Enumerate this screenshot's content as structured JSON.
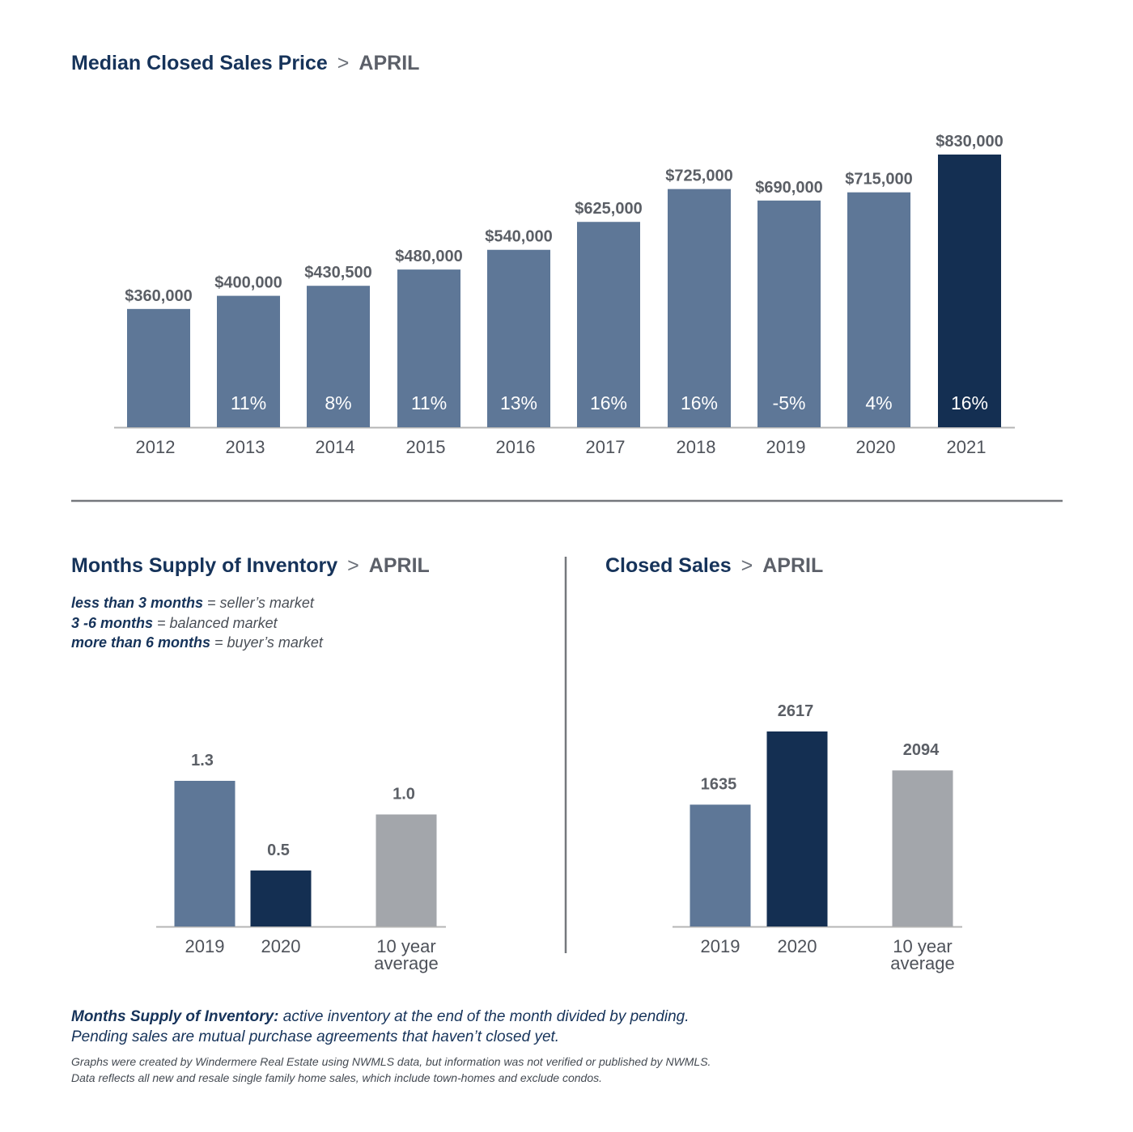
{
  "colors": {
    "bar": "#5e7797",
    "highlight": "#142f52",
    "average": "#a3a6ab",
    "axis": "#b5b5b5",
    "title": "#16335a",
    "divider": "#75787d"
  },
  "sections": {
    "price": {
      "title": "Median Closed Sales Price",
      "sep": ">",
      "month": "APRIL"
    },
    "inventory": {
      "title": "Months Supply of Inventory",
      "sep": ">",
      "month": "APRIL"
    },
    "sales": {
      "title": "Closed Sales",
      "sep": ">",
      "month": "APRIL"
    }
  },
  "legend": {
    "line1_key": "less than 3 months",
    "line1_val": " = seller’s market",
    "line2_key": "3 -6 months",
    "line2_val": " = balanced market",
    "line3_key": "more than 6 months",
    "line3_val": " = buyer’s market"
  },
  "footnote": {
    "key": "Months Supply of Inventory:",
    "line1": " active inventory at the end of the month divided by pending.",
    "line2": "Pending sales are mutual purchase agreements that haven’t closed yet."
  },
  "fine_print": {
    "line1": "Graphs were created by Windermere Real Estate using NWMLS data, but information was not verified or published by NWMLS.",
    "line2": "Data reflects all new and resale single family home sales, which include town-homes and exclude condos."
  },
  "chart_data": [
    {
      "type": "bar",
      "title": "Median Closed Sales Price > APRIL",
      "categories": [
        "2012",
        "2013",
        "2014",
        "2015",
        "2016",
        "2017",
        "2018",
        "2019",
        "2020",
        "2021"
      ],
      "values": [
        360000,
        400000,
        430500,
        480000,
        540000,
        625000,
        725000,
        690000,
        715000,
        830000
      ],
      "value_labels": [
        "$360,000",
        "$400,000",
        "$430,500",
        "$480,000",
        "$540,000",
        "$625,000",
        "$725,000",
        "$690,000",
        "$715,000",
        "$830,000"
      ],
      "pct_change_labels": [
        "",
        "11%",
        "8%",
        "11%",
        "13%",
        "16%",
        "16%",
        "-5%",
        "4%",
        "16%"
      ],
      "highlight_index": 9,
      "ylim": [
        0,
        830000
      ],
      "grid": false
    },
    {
      "type": "bar",
      "title": "Months Supply of Inventory > APRIL",
      "categories": [
        "2019",
        "2020",
        "10 year average"
      ],
      "values": [
        1.3,
        0.5,
        1.0
      ],
      "value_labels": [
        "1.3",
        "0.5",
        "1.0"
      ],
      "ylim": [
        0,
        1.3
      ],
      "grid": false
    },
    {
      "type": "bar",
      "title": "Closed Sales > APRIL",
      "categories": [
        "2019",
        "2020",
        "10 year average"
      ],
      "values": [
        1635,
        2617,
        2094
      ],
      "value_labels": [
        "1635",
        "2617",
        "2094"
      ],
      "ylim": [
        0,
        2617
      ],
      "grid": false
    }
  ]
}
